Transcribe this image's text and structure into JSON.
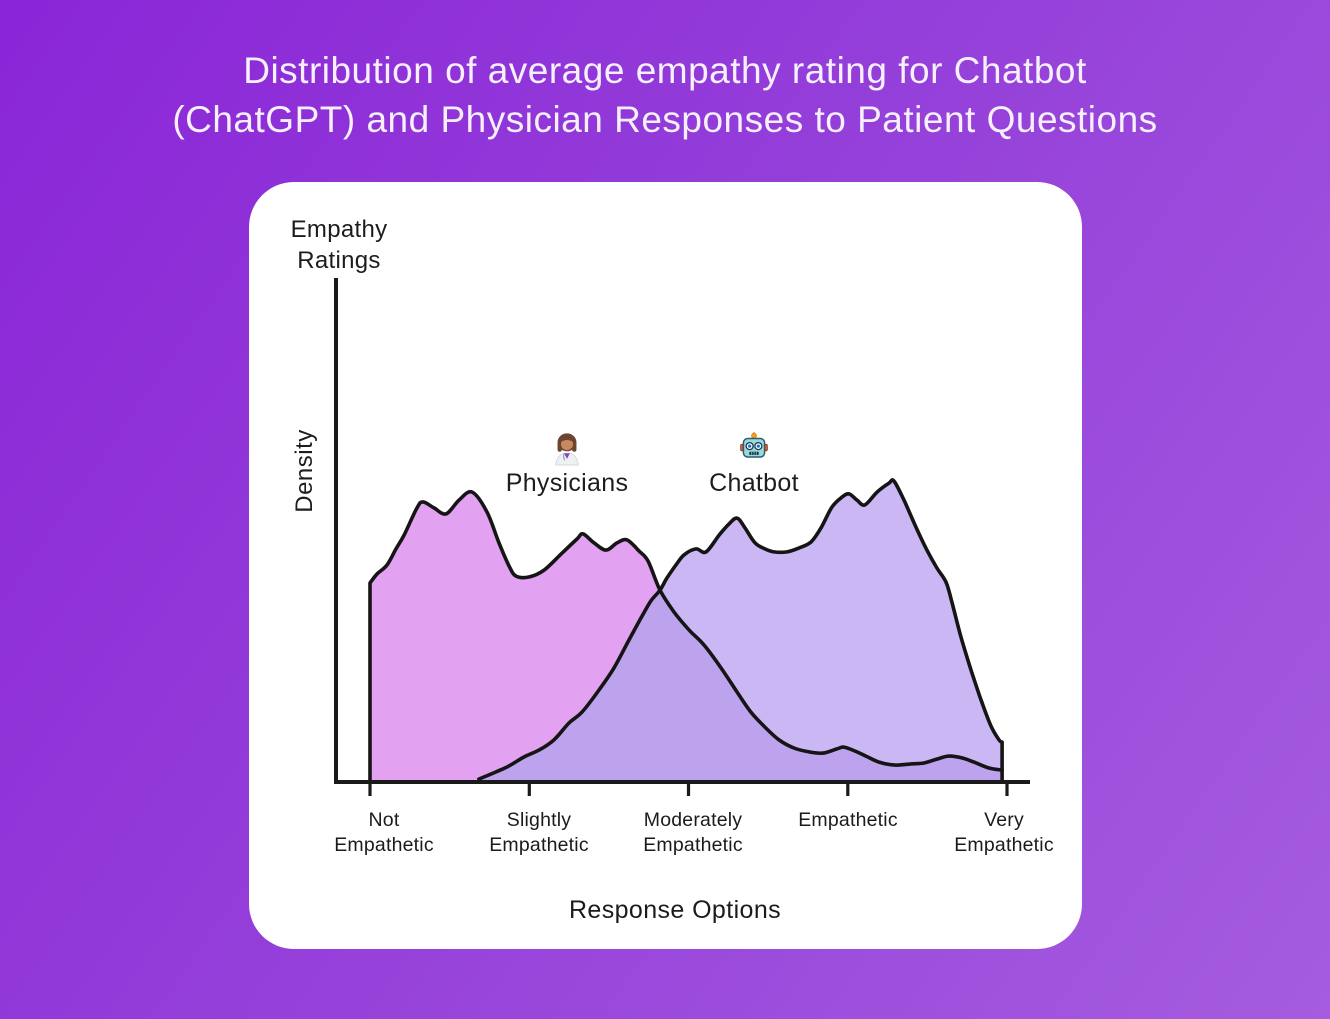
{
  "title": {
    "line1": "Distribution of average empathy rating for Chatbot",
    "line2": "(ChatGPT) and Physician Responses to Patient Questions"
  },
  "chart": {
    "y_axis_title_line1": "Empathy",
    "y_axis_title_line2": "Ratings",
    "y_axis_label": "Density",
    "x_axis_label": "Response Options",
    "x_ticks": [
      {
        "line1": "Not",
        "line2": "Empathetic"
      },
      {
        "line1": "Slightly",
        "line2": "Empathetic"
      },
      {
        "line1": "Moderately",
        "line2": "Empathetic"
      },
      {
        "line1": "Empathetic",
        "line2": ""
      },
      {
        "line1": "Very",
        "line2": "Empathetic"
      }
    ],
    "legend": [
      {
        "icon": "woman-health-worker",
        "label": "Physicians"
      },
      {
        "icon": "robot",
        "label": "Chatbot"
      }
    ]
  },
  "colors": {
    "background_gradient_start": "#8a25d7",
    "background_gradient_end": "#a55cdf",
    "card": "#ffffff",
    "title_text": "#f6f0fc",
    "text_dark": "#1d1d1d",
    "axis": "#1a1a1a",
    "curve_stroke": "#151515",
    "physicians_fill": "#e2a1f1",
    "chatbot_fill": "#ccb7f5",
    "overlap_fill": "#bda2ee"
  },
  "chart_data": {
    "type": "area",
    "title": "Distribution of average empathy rating for Chatbot (ChatGPT) and Physician Responses to Patient Questions",
    "xlabel": "Response Options",
    "ylabel": "Density",
    "x_categories": [
      "Not Empathetic",
      "Slightly Empathetic",
      "Moderately Empathetic",
      "Empathetic",
      "Very Empathetic"
    ],
    "x_category_positions": [
      1,
      2,
      3,
      4,
      5
    ],
    "y_axis_note": "density axis unlabeled; values are relative 0-1",
    "grid": false,
    "legend_position": "inside-top-center",
    "crossing_point": [
      2.821,
      0.635
    ],
    "series": [
      {
        "name": "Physicians",
        "color": "#e2a1f1",
        "points": [
          [
            1.0,
            0.659
          ],
          [
            1.044,
            0.689
          ],
          [
            1.107,
            0.719
          ],
          [
            1.163,
            0.773
          ],
          [
            1.214,
            0.819
          ],
          [
            1.295,
            0.91
          ],
          [
            1.333,
            0.93
          ],
          [
            1.402,
            0.91
          ],
          [
            1.477,
            0.89
          ],
          [
            1.559,
            0.936
          ],
          [
            1.641,
            0.963
          ],
          [
            1.735,
            0.896
          ],
          [
            1.81,
            0.793
          ],
          [
            1.873,
            0.716
          ],
          [
            1.917,
            0.682
          ],
          [
            1.998,
            0.679
          ],
          [
            2.093,
            0.702
          ],
          [
            2.206,
            0.759
          ],
          [
            2.3,
            0.806
          ],
          [
            2.338,
            0.823
          ],
          [
            2.407,
            0.793
          ],
          [
            2.482,
            0.769
          ],
          [
            2.551,
            0.793
          ],
          [
            2.614,
            0.803
          ],
          [
            2.689,
            0.766
          ],
          [
            2.746,
            0.732
          ],
          [
            2.821,
            0.635
          ],
          [
            2.909,
            0.562
          ],
          [
            3.003,
            0.502
          ],
          [
            3.097,
            0.452
          ],
          [
            3.204,
            0.375
          ],
          [
            3.305,
            0.294
          ],
          [
            3.392,
            0.227
          ],
          [
            3.48,
            0.177
          ],
          [
            3.568,
            0.134
          ],
          [
            3.662,
            0.107
          ],
          [
            3.757,
            0.094
          ],
          [
            3.845,
            0.09
          ],
          [
            3.932,
            0.104
          ],
          [
            3.976,
            0.11
          ],
          [
            4.045,
            0.097
          ],
          [
            4.114,
            0.08
          ],
          [
            4.196,
            0.06
          ],
          [
            4.297,
            0.05
          ],
          [
            4.397,
            0.054
          ],
          [
            4.479,
            0.057
          ],
          [
            4.56,
            0.07
          ],
          [
            4.636,
            0.08
          ],
          [
            4.717,
            0.074
          ],
          [
            4.793,
            0.06
          ],
          [
            4.887,
            0.04
          ],
          [
            4.969,
            0.033
          ]
        ]
      },
      {
        "name": "Chatbot",
        "color": "#ccb7f5",
        "points": [
          [
            1.684,
            0.003
          ],
          [
            1.791,
            0.027
          ],
          [
            1.873,
            0.047
          ],
          [
            1.967,
            0.077
          ],
          [
            2.061,
            0.1
          ],
          [
            2.155,
            0.134
          ],
          [
            2.25,
            0.191
          ],
          [
            2.331,
            0.227
          ],
          [
            2.438,
            0.301
          ],
          [
            2.532,
            0.375
          ],
          [
            2.626,
            0.468
          ],
          [
            2.702,
            0.542
          ],
          [
            2.764,
            0.599
          ],
          [
            2.821,
            0.635
          ],
          [
            2.865,
            0.676
          ],
          [
            2.921,
            0.719
          ],
          [
            2.972,
            0.753
          ],
          [
            3.047,
            0.773
          ],
          [
            3.11,
            0.763
          ],
          [
            3.192,
            0.819
          ],
          [
            3.254,
            0.856
          ],
          [
            3.305,
            0.876
          ],
          [
            3.355,
            0.843
          ],
          [
            3.418,
            0.793
          ],
          [
            3.48,
            0.773
          ],
          [
            3.537,
            0.763
          ],
          [
            3.618,
            0.763
          ],
          [
            3.694,
            0.776
          ],
          [
            3.769,
            0.796
          ],
          [
            3.832,
            0.843
          ],
          [
            3.901,
            0.913
          ],
          [
            3.964,
            0.946
          ],
          [
            4.008,
            0.957
          ],
          [
            4.058,
            0.936
          ],
          [
            4.108,
            0.92
          ],
          [
            4.184,
            0.963
          ],
          [
            4.259,
            0.993
          ],
          [
            4.29,
            1.0
          ],
          [
            4.353,
            0.936
          ],
          [
            4.428,
            0.846
          ],
          [
            4.497,
            0.769
          ],
          [
            4.56,
            0.709
          ],
          [
            4.617,
            0.662
          ],
          [
            4.654,
            0.595
          ],
          [
            4.711,
            0.478
          ],
          [
            4.774,
            0.368
          ],
          [
            4.837,
            0.268
          ],
          [
            4.899,
            0.181
          ],
          [
            4.95,
            0.134
          ],
          [
            4.969,
            0.127
          ]
        ]
      }
    ],
    "overlap_color": "#bda2ee"
  }
}
